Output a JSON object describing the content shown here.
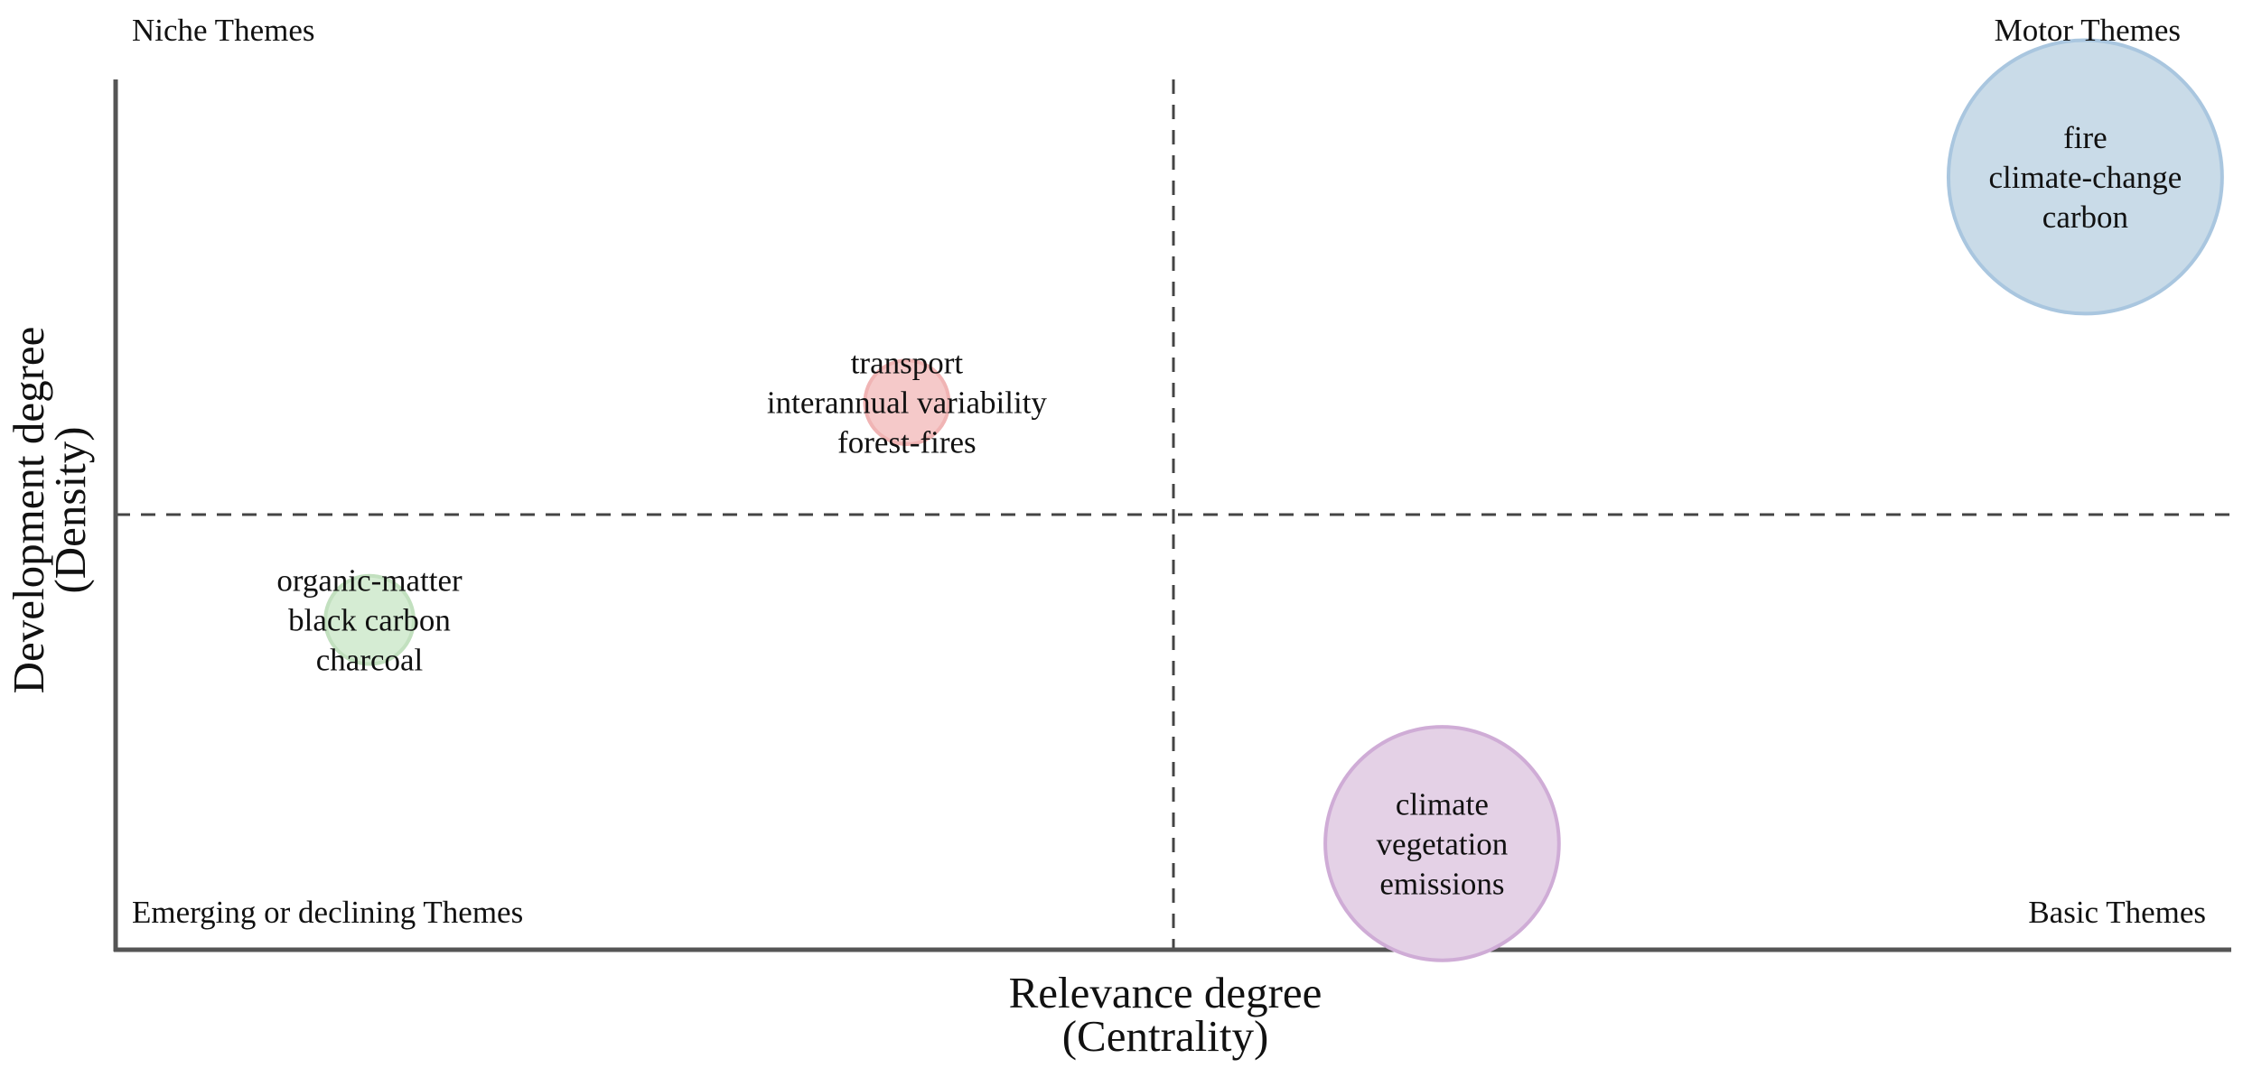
{
  "chart_data": {
    "type": "scatter",
    "title": "",
    "xlabel": "Relevance degree",
    "xlabel_sub": "(Centrality)",
    "ylabel": "Development degree",
    "ylabel_sub": "(Density)",
    "xlim": [
      0,
      100
    ],
    "ylim": [
      0,
      100
    ],
    "x_divider": 50,
    "y_divider": 50,
    "grid": false,
    "ticks": false,
    "quadrant_labels": {
      "top_left": "Niche Themes",
      "top_right": "Motor Themes",
      "bottom_left": "Emerging or declining Themes",
      "bottom_right": "Basic Themes"
    },
    "points": [
      {
        "x": 93.1,
        "y": 88.8,
        "size": 96,
        "color": "#c9dbe8",
        "stroke": "#a9c6df",
        "labels": [
          "fire",
          "climate-change",
          "carbon"
        ]
      },
      {
        "x": 37.4,
        "y": 62.9,
        "size": 9,
        "color": "#f5c9c9",
        "stroke": "#f0b4b4",
        "labels": [
          "transport",
          "interannual variability",
          "forest-fires"
        ]
      },
      {
        "x": 12.0,
        "y": 37.9,
        "size": 10,
        "color": "#d5ecd3",
        "stroke": "#c2e0bf",
        "labels": [
          "organic-matter",
          "black carbon",
          "charcoal"
        ]
      },
      {
        "x": 62.7,
        "y": 12.2,
        "size": 70,
        "color": "#e4d1e6",
        "stroke": "#cfacd6",
        "labels": [
          "climate",
          "vegetation",
          "emissions"
        ]
      }
    ]
  }
}
